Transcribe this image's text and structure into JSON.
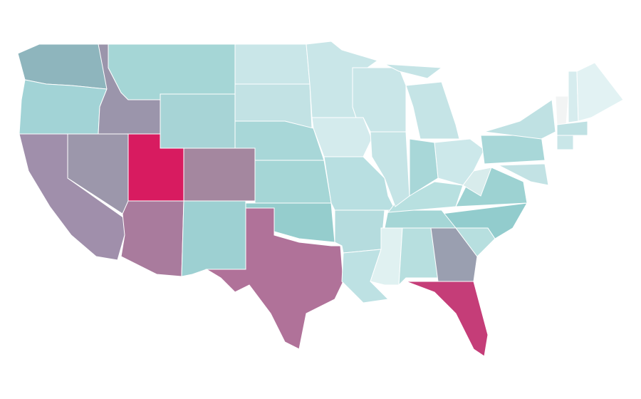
{
  "map": {
    "regions": [
      {
        "color": "#8eb5bd"
      },
      {
        "color": "#a2d3d6"
      },
      {
        "color": "#9b95ab"
      },
      {
        "color": "#a08fab"
      },
      {
        "color": "#9c97ab"
      },
      {
        "color": "#d81b60"
      },
      {
        "color": "#a97b9d"
      },
      {
        "color": "#a4879f"
      },
      {
        "color": "#a7d4d6"
      },
      {
        "color": "#a5d6d6"
      },
      {
        "color": "#9dd0d2"
      },
      {
        "color": "#b07299"
      },
      {
        "color": "#c9e6e8"
      },
      {
        "color": "#c2e2e4"
      },
      {
        "color": "#a8d7d8"
      },
      {
        "color": "#a5d6d6"
      },
      {
        "color": "#95cdcd"
      },
      {
        "color": "#c9e6e8"
      },
      {
        "color": "#d4ebed"
      },
      {
        "color": "#b8dfe1"
      },
      {
        "color": "#b5dcde"
      },
      {
        "color": "#bde1e3"
      },
      {
        "color": "#e0f1f1"
      },
      {
        "color": "#b7dfdf"
      },
      {
        "color": "#9a9fb0"
      },
      {
        "color": "#c53d78"
      },
      {
        "color": "#b7dfdf"
      },
      {
        "color": "#92cccd"
      },
      {
        "color": "#a5d6d6"
      },
      {
        "color": "#b8e0e0"
      },
      {
        "color": "#9dd2d2"
      },
      {
        "color": "#d8ecec"
      },
      {
        "color": "#cce8ea"
      },
      {
        "color": "#a8d7d8"
      },
      {
        "color": "#c5e4e6"
      },
      {
        "color": "#c9e6e8"
      },
      {
        "color": "#c5e4e6"
      },
      {
        "color": "#c5e4e6"
      },
      {
        "color": "#a8d7d8"
      },
      {
        "color": "#bfe1e3"
      },
      {
        "color": "#f2f4f4"
      },
      {
        "color": "#d6ecee"
      },
      {
        "color": "#e2f2f3"
      },
      {
        "color": "#bfe1e3"
      },
      {
        "color": "#c9e6e8"
      },
      {
        "color": "#c2e2e4"
      }
    ]
  }
}
